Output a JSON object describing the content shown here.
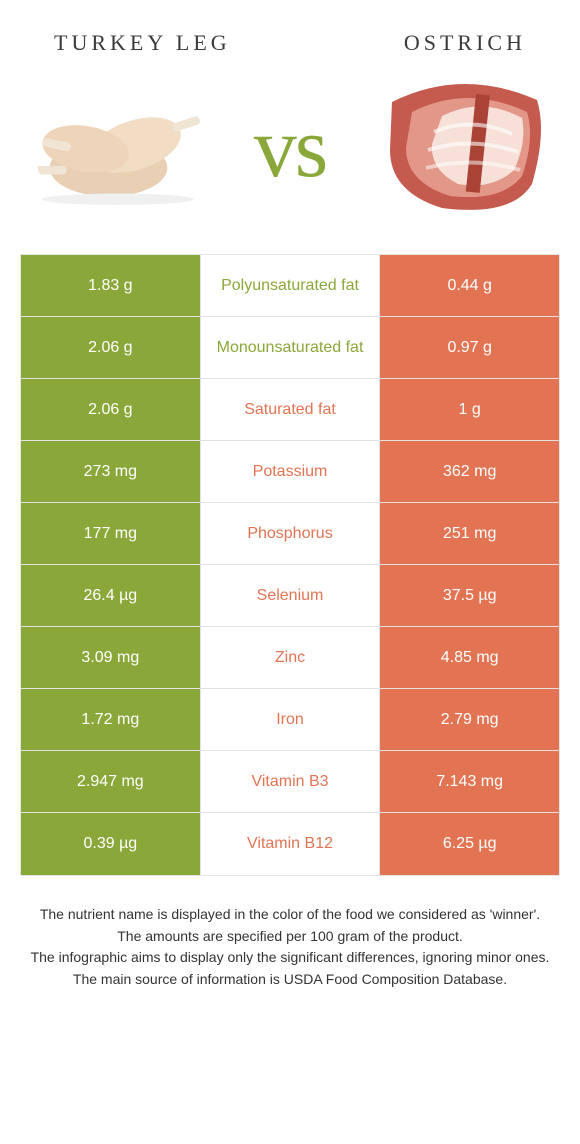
{
  "colors": {
    "green": "#8aa83a",
    "orange": "#e37453",
    "text": "#333333",
    "border": "#e1e1e1"
  },
  "left_title": "Turkey leg",
  "right_title": "Ostrich",
  "vs_label": "vs",
  "rows": [
    {
      "nutrient": "Polyunsaturated fat",
      "left": "1.83 g",
      "right": "0.44 g",
      "winner": "left"
    },
    {
      "nutrient": "Monounsaturated fat",
      "left": "2.06 g",
      "right": "0.97 g",
      "winner": "left"
    },
    {
      "nutrient": "Saturated fat",
      "left": "2.06 g",
      "right": "1 g",
      "winner": "right"
    },
    {
      "nutrient": "Potassium",
      "left": "273 mg",
      "right": "362 mg",
      "winner": "right"
    },
    {
      "nutrient": "Phosphorus",
      "left": "177 mg",
      "right": "251 mg",
      "winner": "right"
    },
    {
      "nutrient": "Selenium",
      "left": "26.4 µg",
      "right": "37.5 µg",
      "winner": "right"
    },
    {
      "nutrient": "Zinc",
      "left": "3.09 mg",
      "right": "4.85 mg",
      "winner": "right"
    },
    {
      "nutrient": "Iron",
      "left": "1.72 mg",
      "right": "2.79 mg",
      "winner": "right"
    },
    {
      "nutrient": "Vitamin B3",
      "left": "2.947 mg",
      "right": "7.143 mg",
      "winner": "right"
    },
    {
      "nutrient": "Vitamin B12",
      "left": "0.39 µg",
      "right": "6.25 µg",
      "winner": "right"
    }
  ],
  "footer": [
    "The nutrient name is displayed in the color of the food we considered as 'winner'.",
    "The amounts are specified per 100 gram of the product.",
    "The infographic aims to display only the significant differences, ignoring minor ones.",
    "The main source of information is USDA Food Composition Database."
  ]
}
